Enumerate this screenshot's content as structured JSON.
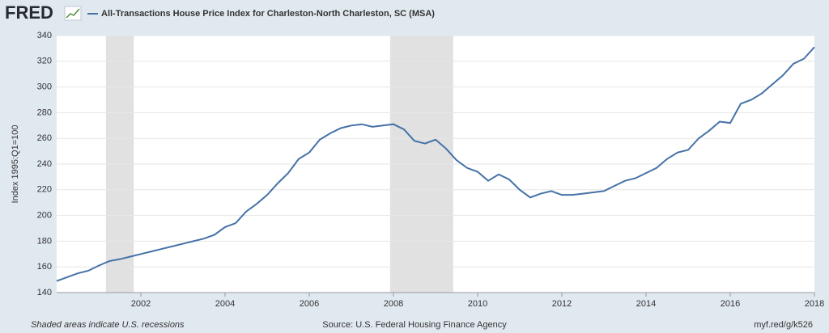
{
  "logo": "FRED",
  "chart_data": {
    "type": "line",
    "y_label": "Index 1995:Q1=100",
    "x": [
      2000,
      2000.25,
      2000.5,
      2000.75,
      2001,
      2001.25,
      2001.5,
      2001.75,
      2002,
      2002.25,
      2002.5,
      2002.75,
      2003,
      2003.25,
      2003.5,
      2003.75,
      2004,
      2004.25,
      2004.5,
      2004.75,
      2005,
      2005.25,
      2005.5,
      2005.75,
      2006,
      2006.25,
      2006.5,
      2006.75,
      2007,
      2007.25,
      2007.5,
      2007.75,
      2008,
      2008.25,
      2008.5,
      2008.75,
      2009,
      2009.25,
      2009.5,
      2009.75,
      2010,
      2010.25,
      2010.5,
      2010.75,
      2011,
      2011.25,
      2011.5,
      2011.75,
      2012,
      2012.25,
      2012.5,
      2012.75,
      2013,
      2013.25,
      2013.5,
      2013.75,
      2014,
      2014.25,
      2014.5,
      2014.75,
      2015,
      2015.25,
      2015.5,
      2015.75,
      2016,
      2016.25,
      2016.5,
      2016.75,
      2017,
      2017.25,
      2017.5,
      2017.75,
      2018
    ],
    "series": [
      {
        "name": "All-Transactions House Price Index for Charleston-North Charleston, SC (MSA)",
        "color": "#4572a7",
        "values": [
          149,
          152,
          155,
          157,
          161,
          164.5,
          166,
          168,
          170,
          172,
          174,
          176,
          178,
          180,
          182,
          185,
          191,
          194,
          203,
          209,
          216,
          225,
          233,
          244,
          249,
          259,
          264,
          268,
          270,
          271,
          269,
          270,
          271,
          267,
          258,
          256,
          259,
          252,
          243,
          237,
          234,
          227,
          232,
          228,
          220,
          214,
          217,
          219,
          216,
          216,
          217,
          218,
          219,
          223,
          227,
          229,
          233,
          237,
          244,
          249,
          251,
          260,
          266,
          273,
          272,
          287,
          290,
          295,
          302,
          309,
          318,
          322,
          331
        ]
      }
    ],
    "recessions": [
      {
        "start": 2001.17,
        "end": 2001.83
      },
      {
        "start": 2007.92,
        "end": 2009.42
      }
    ],
    "xlim": [
      2000,
      2018
    ],
    "xticks": [
      2002,
      2004,
      2006,
      2008,
      2010,
      2012,
      2014,
      2016,
      2018
    ],
    "ylim": [
      140,
      340
    ],
    "yticks": [
      140,
      160,
      180,
      200,
      220,
      240,
      260,
      280,
      300,
      320,
      340
    ],
    "grid": true,
    "recession_color": "#e1e1e1",
    "footer_left": "Shaded areas indicate U.S. recessions",
    "footer_center": "Source: U.S. Federal Housing Finance Agency",
    "footer_right": "myf.red/g/k526"
  }
}
